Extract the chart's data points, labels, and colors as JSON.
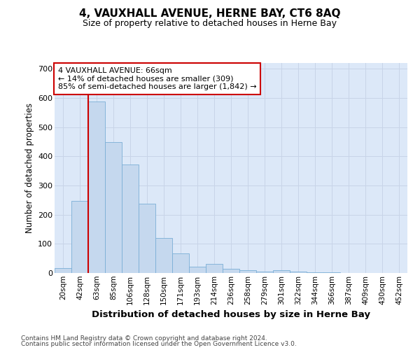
{
  "title": "4, VAUXHALL AVENUE, HERNE BAY, CT6 8AQ",
  "subtitle": "Size of property relative to detached houses in Herne Bay",
  "xlabel": "Distribution of detached houses by size in Herne Bay",
  "ylabel": "Number of detached properties",
  "categories": [
    "20sqm",
    "42sqm",
    "63sqm",
    "85sqm",
    "106sqm",
    "128sqm",
    "150sqm",
    "171sqm",
    "193sqm",
    "214sqm",
    "236sqm",
    "258sqm",
    "279sqm",
    "301sqm",
    "322sqm",
    "344sqm",
    "366sqm",
    "387sqm",
    "409sqm",
    "430sqm",
    "452sqm"
  ],
  "values": [
    18,
    248,
    588,
    449,
    372,
    238,
    120,
    67,
    22,
    31,
    14,
    10,
    6,
    9,
    4,
    3,
    2,
    1,
    0,
    0,
    0
  ],
  "bar_color": "#c5d8ee",
  "bar_edge_color": "#7aaed6",
  "property_line_color": "#cc0000",
  "property_line_index": 2,
  "annotation_text": "4 VAUXHALL AVENUE: 66sqm\n← 14% of detached houses are smaller (309)\n85% of semi-detached houses are larger (1,842) →",
  "annotation_box_edgecolor": "#cc0000",
  "ylim": [
    0,
    720
  ],
  "yticks": [
    0,
    100,
    200,
    300,
    400,
    500,
    600,
    700
  ],
  "grid_color": "#c8d4e8",
  "bg_color": "#dce8f8",
  "footer1": "Contains HM Land Registry data © Crown copyright and database right 2024.",
  "footer2": "Contains public sector information licensed under the Open Government Licence v3.0."
}
